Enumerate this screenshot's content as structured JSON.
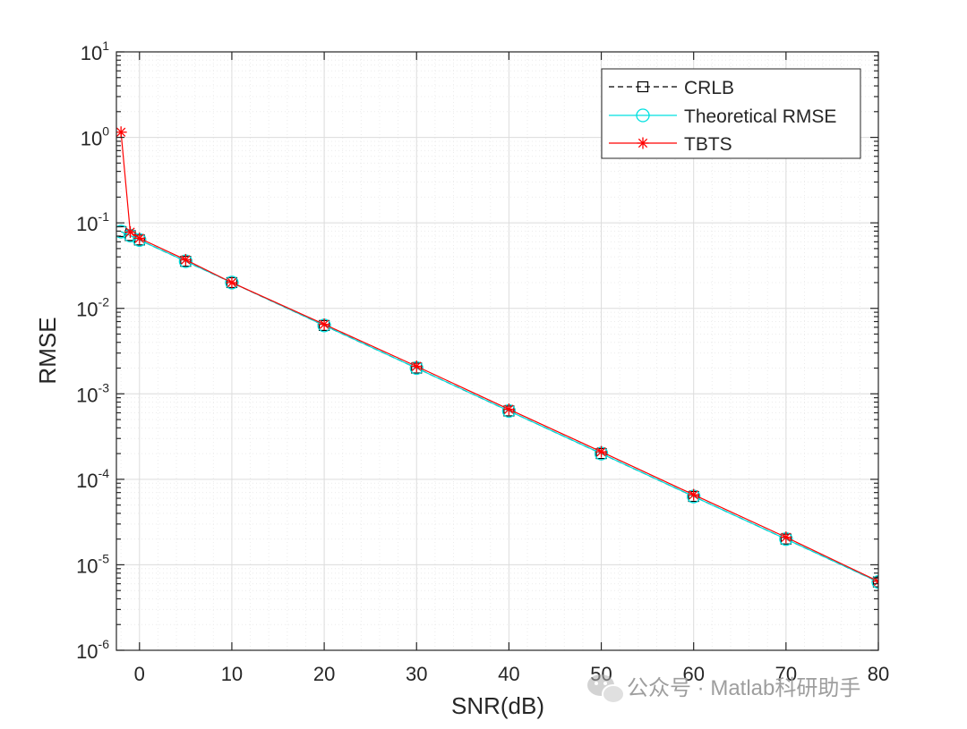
{
  "chart_data": {
    "type": "line",
    "scale": {
      "x": "linear",
      "y": "log"
    },
    "xlabel": "SNR(dB)",
    "ylabel": "RMSE",
    "xlim": [
      -2.5,
      80
    ],
    "ylim": [
      1e-06,
      10
    ],
    "x_ticks": [
      {
        "value": 0,
        "label": "0"
      },
      {
        "value": 10,
        "label": "10"
      },
      {
        "value": 20,
        "label": "20"
      },
      {
        "value": 30,
        "label": "30"
      },
      {
        "value": 40,
        "label": "40"
      },
      {
        "value": 50,
        "label": "50"
      },
      {
        "value": 60,
        "label": "60"
      },
      {
        "value": 70,
        "label": "70"
      },
      {
        "value": 80,
        "label": "80"
      }
    ],
    "y_ticks": [
      {
        "value": 10,
        "base": "10",
        "exp": "1"
      },
      {
        "value": 1,
        "base": "10",
        "exp": "0"
      },
      {
        "value": 0.1,
        "base": "10",
        "exp": "-1"
      },
      {
        "value": 0.01,
        "base": "10",
        "exp": "-2"
      },
      {
        "value": 0.001,
        "base": "10",
        "exp": "-3"
      },
      {
        "value": 0.0001,
        "base": "10",
        "exp": "-4"
      },
      {
        "value": 1e-05,
        "base": "10",
        "exp": "-5"
      },
      {
        "value": 1e-06,
        "base": "10",
        "exp": "-6"
      }
    ],
    "grid": true,
    "minor_grid": true,
    "legend_position": "top-right",
    "x": [
      -2,
      -1,
      0,
      5,
      10,
      20,
      30,
      40,
      50,
      60,
      70,
      80
    ],
    "series": [
      {
        "name": "CRLB",
        "color": "#000000",
        "line": "dashed",
        "marker": "square",
        "values": [
          0.079,
          0.071,
          0.063,
          0.0355,
          0.02,
          0.0063,
          0.002,
          0.00063,
          0.0002,
          6.3e-05,
          2e-05,
          6.3e-06
        ]
      },
      {
        "name": "Theoretical RMSE",
        "color": "#00e0e0",
        "line": "solid",
        "marker": "circle",
        "values": [
          0.079,
          0.071,
          0.063,
          0.0355,
          0.02,
          0.0063,
          0.002,
          0.00063,
          0.0002,
          6.3e-05,
          2e-05,
          6.3e-06
        ]
      },
      {
        "name": "TBTS",
        "color": "#ff0000",
        "line": "solid",
        "marker": "asterisk",
        "values": [
          1.15,
          0.078,
          0.066,
          0.037,
          0.02,
          0.0065,
          0.0021,
          0.00066,
          0.00021,
          6.6e-05,
          2.1e-05,
          6.4e-06
        ]
      }
    ]
  },
  "watermark": {
    "text": "公众号 · Matlab科研助手",
    "icon": "wechat-icon"
  }
}
